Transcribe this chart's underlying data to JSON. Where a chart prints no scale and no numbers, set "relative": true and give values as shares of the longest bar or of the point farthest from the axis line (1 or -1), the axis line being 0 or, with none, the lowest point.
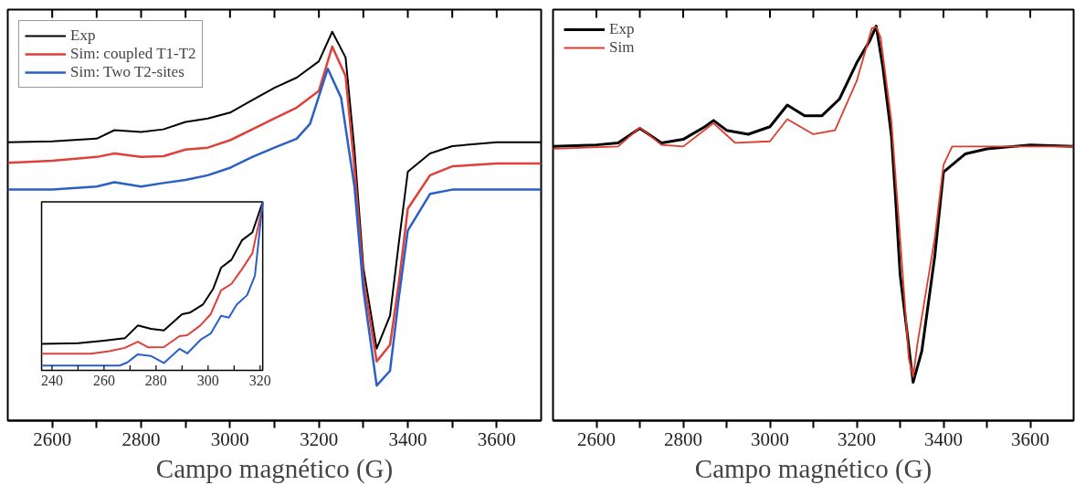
{
  "chart_data": [
    {
      "type": "line",
      "relative": true,
      "xlabel": "Campo magnético (G)",
      "xlim": [
        2500,
        3700
      ],
      "xticks": [
        2600,
        {
          "value": 2700,
          "label": null
        },
        2800,
        {
          "value": 2900,
          "label": null
        },
        3000,
        {
          "value": 3100,
          "label": null
        },
        3200,
        {
          "value": 3300,
          "label": null
        },
        3400,
        {
          "value": 3500,
          "label": null
        },
        3600
      ],
      "legend": "top left",
      "series": [
        {
          "name": "Exp",
          "color": "#000000",
          "x": [
            2500,
            2600,
            2700,
            2740,
            2800,
            2850,
            2900,
            2950,
            3000,
            3050,
            3100,
            3150,
            3200,
            3230,
            3260,
            3280,
            3300,
            3330,
            3360,
            3380,
            3400,
            3450,
            3500,
            3600,
            3700
          ],
          "values": [
            0.716,
            0.718,
            0.725,
            0.747,
            0.742,
            0.749,
            0.768,
            0.777,
            0.792,
            0.824,
            0.856,
            0.882,
            0.924,
            1.0,
            0.934,
            0.697,
            0.393,
            0.185,
            0.27,
            0.459,
            0.64,
            0.687,
            0.706,
            0.716,
            0.716
          ]
        },
        {
          "name": "Sim: coupled T1-T2",
          "color": "#e0403a",
          "x": [
            2500,
            2600,
            2700,
            2740,
            2800,
            2850,
            2900,
            2950,
            3000,
            3050,
            3100,
            3150,
            3200,
            3230,
            3260,
            3280,
            3300,
            3330,
            3360,
            3380,
            3400,
            3450,
            3500,
            3600,
            3700
          ],
          "values": [
            0.663,
            0.668,
            0.678,
            0.687,
            0.678,
            0.68,
            0.697,
            0.702,
            0.721,
            0.749,
            0.777,
            0.805,
            0.848,
            0.962,
            0.886,
            0.65,
            0.365,
            0.152,
            0.195,
            0.356,
            0.545,
            0.631,
            0.654,
            0.661,
            0.661
          ]
        },
        {
          "name": "Sim: Two T2-sites",
          "color": "#2a5fc8",
          "x": [
            2500,
            2600,
            2700,
            2740,
            2800,
            2850,
            2900,
            2950,
            3000,
            3050,
            3100,
            3150,
            3180,
            3220,
            3250,
            3280,
            3300,
            3330,
            3360,
            3380,
            3400,
            3450,
            3500,
            3700
          ],
          "values": [
            0.594,
            0.594,
            0.602,
            0.613,
            0.602,
            0.611,
            0.619,
            0.631,
            0.65,
            0.678,
            0.702,
            0.725,
            0.763,
            0.905,
            0.83,
            0.602,
            0.337,
            0.09,
            0.128,
            0.318,
            0.489,
            0.583,
            0.594,
            0.594
          ]
        }
      ]
    },
    {
      "type": "line",
      "relative": true,
      "xlim": [
        236,
        321
      ],
      "xticks": [
        240,
        {
          "value": 250,
          "label": null
        },
        260,
        {
          "value": 270,
          "label": null
        },
        280,
        {
          "value": 290,
          "label": null
        },
        300,
        {
          "value": 310,
          "label": null
        },
        320
      ],
      "series": [
        {
          "color": "#000000",
          "x": [
            236,
            250,
            260,
            268,
            273,
            278,
            283,
            290,
            293,
            298,
            302,
            305,
            309,
            313,
            317,
            321
          ],
          "values": [
            0.158,
            0.162,
            0.177,
            0.191,
            0.267,
            0.247,
            0.238,
            0.334,
            0.343,
            0.391,
            0.486,
            0.61,
            0.657,
            0.772,
            0.819,
            1.0
          ]
        },
        {
          "color": "#e0403a",
          "x": [
            236,
            255,
            262,
            268,
            273,
            277,
            283,
            289,
            292,
            297,
            301,
            305,
            309,
            313,
            317,
            321
          ],
          "values": [
            0.1,
            0.1,
            0.114,
            0.134,
            0.171,
            0.137,
            0.139,
            0.204,
            0.209,
            0.267,
            0.334,
            0.476,
            0.514,
            0.6,
            0.695,
            0.981
          ]
        },
        {
          "color": "#2a5fc8",
          "x": [
            236,
            266,
            269,
            273,
            278,
            283,
            289,
            292,
            297,
            301,
            305,
            308,
            311,
            315,
            318,
            321
          ],
          "values": [
            0.029,
            0.029,
            0.048,
            0.096,
            0.086,
            0.044,
            0.128,
            0.101,
            0.181,
            0.219,
            0.324,
            0.314,
            0.391,
            0.447,
            0.562,
            1.0
          ]
        }
      ]
    },
    {
      "type": "line",
      "relative": true,
      "xlabel": "Campo magnético (G)",
      "xlim": [
        2500,
        3700
      ],
      "xticks": [
        2600,
        {
          "value": 2700,
          "label": null
        },
        2800,
        {
          "value": 2900,
          "label": null
        },
        3000,
        {
          "value": 3100,
          "label": null
        },
        3200,
        {
          "value": 3300,
          "label": null
        },
        3400,
        {
          "value": 3500,
          "label": null
        },
        3600
      ],
      "legend": "top left",
      "series": [
        {
          "name": "Exp",
          "color": "#000000",
          "x": [
            2500,
            2600,
            2650,
            2700,
            2750,
            2800,
            2850,
            2870,
            2900,
            2950,
            3000,
            3040,
            3080,
            3120,
            3160,
            3200,
            3230,
            3245,
            3260,
            3280,
            3290,
            3300,
            3330,
            3350,
            3380,
            3400,
            3450,
            3500,
            3600,
            3700
          ],
          "values": [
            0.695,
            0.699,
            0.704,
            0.741,
            0.704,
            0.713,
            0.745,
            0.761,
            0.736,
            0.726,
            0.745,
            0.8,
            0.773,
            0.773,
            0.815,
            0.907,
            0.963,
            1.0,
            0.898,
            0.722,
            0.556,
            0.371,
            0.097,
            0.176,
            0.417,
            0.63,
            0.676,
            0.689,
            0.699,
            0.695
          ]
        },
        {
          "name": "Sim",
          "color": "#e03a2a",
          "x": [
            2500,
            2650,
            2700,
            2750,
            2800,
            2870,
            2920,
            3000,
            3040,
            3100,
            3150,
            3200,
            3235,
            3245,
            3255,
            3280,
            3300,
            3320,
            3330,
            3340,
            3380,
            3400,
            3420,
            3700
          ],
          "values": [
            0.689,
            0.695,
            0.743,
            0.699,
            0.695,
            0.754,
            0.704,
            0.708,
            0.764,
            0.726,
            0.736,
            0.861,
            0.995,
            0.998,
            0.972,
            0.759,
            0.463,
            0.158,
            0.111,
            0.195,
            0.463,
            0.648,
            0.695,
            0.695
          ]
        }
      ]
    }
  ]
}
